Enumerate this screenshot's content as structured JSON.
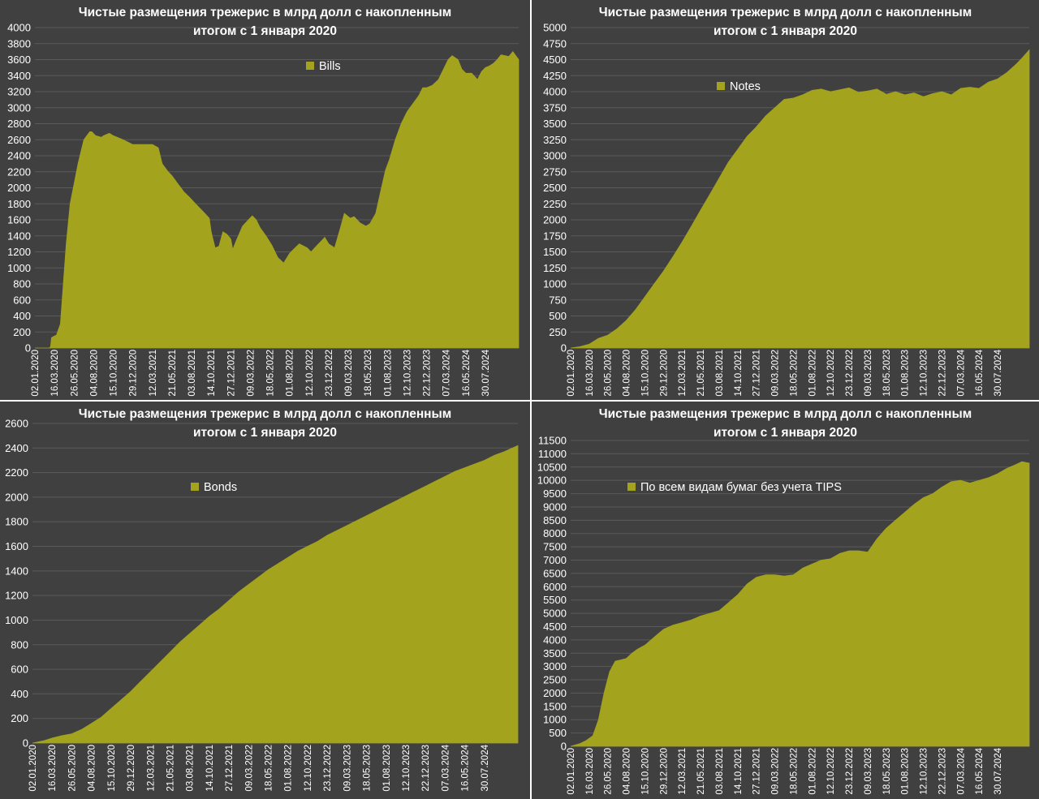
{
  "colors": {
    "background": "#404040",
    "fill": "#a3a31e",
    "grid": "#5a5a5a",
    "text": "#ffffff"
  },
  "x_tick_labels": [
    "02.01.2020",
    "16.03.2020",
    "26.05.2020",
    "04.08.2020",
    "15.10.2020",
    "29.12.2020",
    "12.03.2021",
    "21.05.2021",
    "03.08.2021",
    "14.10.2021",
    "27.12.2021",
    "09.03.2022",
    "18.05.2022",
    "01.08.2022",
    "12.10.2022",
    "23.12.2022",
    "09.03.2023",
    "18.05.2023",
    "01.08.2023",
    "12.10.2023",
    "22.12.2023",
    "07.03.2024",
    "16.05.2024",
    "30.07.2024"
  ],
  "chart_data": [
    {
      "type": "area",
      "title_line1": "Чистые размещения трежерис в млрд долл с накопленным",
      "title_line2": "итогом с 1 января 2020",
      "legend": "Bills",
      "ylim": [
        0,
        4000
      ],
      "yticks": [
        "0",
        "200",
        "400",
        "600",
        "800",
        "1000",
        "1200",
        "1400",
        "1600",
        "1800",
        "2000",
        "2200",
        "2400",
        "2600",
        "2800",
        "3000",
        "3200",
        "3400",
        "3600",
        "3800",
        "4000"
      ],
      "x_span": [
        0,
        24.7
      ],
      "x": [
        0,
        0.75,
        0.8,
        0.85,
        1,
        1.1,
        1.3,
        1.6,
        1.8,
        2.2,
        2.5,
        2.8,
        2.9,
        3.1,
        3.4,
        3.5,
        3.8,
        4,
        4.5,
        5,
        5.5,
        6,
        6.3,
        6.5,
        6.8,
        7,
        7.3,
        7.6,
        7.9,
        8.2,
        8.6,
        8.9,
        9,
        9.2,
        9.4,
        9.6,
        9.8,
        10,
        10.1,
        10.3,
        10.6,
        10.9,
        11.1,
        11.3,
        11.5,
        11.8,
        12.1,
        12.4,
        12.7,
        13,
        13.2,
        13.5,
        13.9,
        14.1,
        14.4,
        14.8,
        15,
        15.3,
        15.6,
        15.8,
        16.1,
        16.3,
        16.6,
        16.9,
        17.1,
        17.4,
        17.6,
        17.9,
        18.1,
        18.4,
        18.7,
        19,
        19.3,
        19.6,
        19.8,
        20,
        20.3,
        20.6,
        20.9,
        21.1,
        21.3,
        21.6,
        21.8,
        22,
        22.3,
        22.6,
        22.8,
        23,
        23.2,
        23.4,
        23.6,
        23.8,
        24,
        24.2,
        24.4,
        24.55,
        24.7
      ],
      "y": [
        0,
        0,
        20,
        130,
        150,
        160,
        300,
        1300,
        1800,
        2300,
        2600,
        2700,
        2700,
        2650,
        2630,
        2650,
        2680,
        2650,
        2600,
        2540,
        2540,
        2540,
        2500,
        2300,
        2200,
        2150,
        2050,
        1950,
        1880,
        1800,
        1700,
        1620,
        1450,
        1250,
        1270,
        1450,
        1420,
        1360,
        1230,
        1350,
        1520,
        1600,
        1650,
        1600,
        1500,
        1400,
        1280,
        1130,
        1060,
        1180,
        1230,
        1300,
        1250,
        1200,
        1280,
        1380,
        1300,
        1250,
        1500,
        1680,
        1620,
        1640,
        1560,
        1520,
        1550,
        1680,
        1900,
        2220,
        2350,
        2600,
        2800,
        2950,
        3050,
        3150,
        3250,
        3250,
        3280,
        3350,
        3500,
        3600,
        3650,
        3600,
        3480,
        3430,
        3430,
        3350,
        3450,
        3500,
        3520,
        3550,
        3600,
        3660,
        3650,
        3640,
        3700,
        3650,
        3600
      ]
    },
    {
      "type": "area",
      "title_line1": "Чистые размещения трежерис в млрд долл с накопленным",
      "title_line2": "итогом с 1 января 2020",
      "legend": "Notes",
      "ylim": [
        0,
        5000
      ],
      "yticks": [
        "0",
        "250",
        "500",
        "750",
        "1000",
        "1250",
        "1500",
        "1750",
        "2000",
        "2250",
        "2500",
        "2750",
        "3000",
        "3250",
        "3500",
        "3750",
        "4000",
        "4250",
        "4500",
        "4750",
        "5000"
      ],
      "x_span": [
        0,
        24.7
      ],
      "x": [
        0,
        0.5,
        1,
        1.5,
        2,
        2.5,
        3,
        3.5,
        4,
        4.5,
        5,
        5.5,
        6,
        6.5,
        7,
        7.5,
        8,
        8.5,
        9,
        9.5,
        10,
        10.5,
        11,
        11.5,
        12,
        12.5,
        13,
        13.5,
        14,
        14.5,
        15,
        15.5,
        16,
        16.5,
        17,
        17.5,
        18,
        18.5,
        19,
        19.5,
        20,
        20.5,
        21,
        21.5,
        22,
        22.5,
        23,
        23.5,
        24,
        24.3,
        24.7
      ],
      "y": [
        0,
        20,
        60,
        150,
        200,
        300,
        430,
        600,
        800,
        1000,
        1200,
        1420,
        1650,
        1900,
        2150,
        2400,
        2650,
        2900,
        3100,
        3300,
        3450,
        3620,
        3750,
        3880,
        3900,
        3950,
        4020,
        4040,
        4000,
        4030,
        4060,
        3990,
        4010,
        4040,
        3960,
        4000,
        3950,
        3980,
        3920,
        3970,
        4000,
        3950,
        4050,
        4070,
        4050,
        4150,
        4200,
        4300,
        4430,
        4520,
        4650
      ]
    },
    {
      "type": "area",
      "title_line1": "Чистые размещения трежерис в млрд долл с накопленным",
      "title_line2": "итогом с 1 января 2020",
      "legend": "Bonds",
      "ylim": [
        0,
        2600
      ],
      "yticks": [
        "0",
        "200",
        "400",
        "600",
        "800",
        "1000",
        "1200",
        "1400",
        "1600",
        "1800",
        "2000",
        "2200",
        "2400",
        "2600"
      ],
      "x_span": [
        0,
        24.7
      ],
      "x": [
        0,
        0.6,
        1,
        1.5,
        2,
        2.5,
        3,
        3.5,
        4,
        4.5,
        5,
        5.5,
        6,
        6.5,
        7,
        7.5,
        8,
        8.5,
        9,
        9.5,
        10,
        10.5,
        11,
        11.5,
        12,
        12.5,
        13,
        13.5,
        14,
        14.5,
        15,
        15.5,
        16,
        16.5,
        17,
        17.5,
        18,
        18.5,
        19,
        19.5,
        20,
        20.5,
        21,
        21.5,
        22,
        22.5,
        23,
        23.5,
        24,
        24.7
      ],
      "y": [
        0,
        20,
        40,
        60,
        75,
        110,
        160,
        210,
        280,
        350,
        420,
        500,
        580,
        660,
        740,
        820,
        890,
        960,
        1030,
        1090,
        1160,
        1230,
        1290,
        1350,
        1410,
        1460,
        1510,
        1560,
        1600,
        1640,
        1690,
        1730,
        1770,
        1810,
        1850,
        1890,
        1930,
        1970,
        2010,
        2050,
        2090,
        2130,
        2170,
        2210,
        2240,
        2270,
        2300,
        2340,
        2370,
        2420
      ]
    },
    {
      "type": "area",
      "title_line1": "Чистые размещения трежерис в млрд долл с накопленным",
      "title_line2": "итогом с 1 января 2020",
      "legend": "По всем видам бумаг без учета TIPS",
      "ylim": [
        0,
        11500
      ],
      "yticks": [
        "0",
        "500",
        "1000",
        "1500",
        "2000",
        "2500",
        "3000",
        "3500",
        "4000",
        "4500",
        "5000",
        "5500",
        "6000",
        "6500",
        "7000",
        "7500",
        "8000",
        "8500",
        "9000",
        "9500",
        "10000",
        "10500",
        "11000",
        "11500"
      ],
      "x_span": [
        0,
        24.7
      ],
      "x": [
        0,
        0.5,
        0.8,
        1,
        1.2,
        1.5,
        1.8,
        2.1,
        2.4,
        2.7,
        3,
        3.3,
        3.6,
        4,
        4.5,
        5,
        5.5,
        6,
        6.5,
        7,
        7.5,
        8,
        8.5,
        9,
        9.5,
        10,
        10.5,
        11,
        11.5,
        12,
        12.5,
        13,
        13.5,
        14,
        14.5,
        15,
        15.5,
        16,
        16.5,
        17,
        17.5,
        18,
        18.5,
        19,
        19.5,
        20,
        20.5,
        21,
        21.5,
        22,
        22.5,
        23,
        23.5,
        24,
        24.3,
        24.7
      ],
      "y": [
        0,
        100,
        200,
        300,
        400,
        1000,
        2000,
        2800,
        3200,
        3250,
        3300,
        3500,
        3650,
        3800,
        4100,
        4400,
        4550,
        4650,
        4750,
        4900,
        5000,
        5100,
        5400,
        5700,
        6100,
        6350,
        6450,
        6450,
        6400,
        6450,
        6700,
        6850,
        7000,
        7050,
        7250,
        7350,
        7350,
        7300,
        7800,
        8200,
        8500,
        8800,
        9100,
        9350,
        9500,
        9750,
        9950,
        10000,
        9900,
        10000,
        10100,
        10250,
        10450,
        10600,
        10700,
        10650
      ]
    }
  ]
}
